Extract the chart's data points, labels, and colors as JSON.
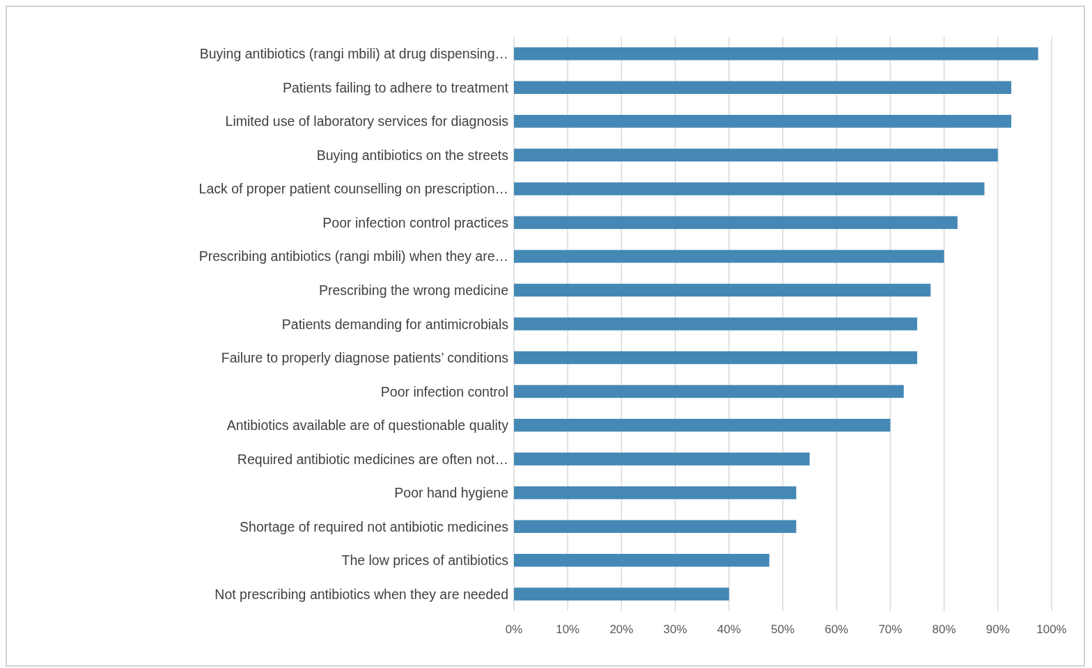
{
  "chart_data": {
    "type": "bar",
    "orientation": "horizontal",
    "categories": [
      "Buying antibiotics (rangi mbili) at drug dispensing…",
      "Patients failing to adhere to treatment",
      "Limited use of laboratory services for diagnosis",
      "Buying antibiotics on the streets",
      "Lack of proper patient counselling on prescription…",
      "Poor infection control practices",
      "Prescribing antibiotics (rangi mbili) when they are…",
      "Prescribing the wrong medicine",
      "Patients demanding for antimicrobials",
      "Failure to properly diagnose patients’ conditions",
      "Poor infection control",
      "Antibiotics available are of questionable quality",
      "Required antibiotic medicines are often not…",
      "Poor hand hygiene",
      "Shortage of required not antibiotic medicines",
      "The low prices of antibiotics",
      "Not prescribing antibiotics when they are needed"
    ],
    "values": [
      97.5,
      92.5,
      92.5,
      90,
      87.5,
      82.5,
      80,
      77.5,
      75,
      75,
      72.5,
      70,
      55,
      52.5,
      52.5,
      47.5,
      40
    ],
    "color": "#4588b5",
    "xlim": [
      0,
      100
    ],
    "xticks": [
      {
        "value": 0,
        "label": "0%"
      },
      {
        "value": 10,
        "label": "10%"
      },
      {
        "value": 20,
        "label": "20%"
      },
      {
        "value": 30,
        "label": "30%"
      },
      {
        "value": 40,
        "label": "40%"
      },
      {
        "value": 50,
        "label": "50%"
      },
      {
        "value": 60,
        "label": "60%"
      },
      {
        "value": 70,
        "label": "70%"
      },
      {
        "value": 80,
        "label": "80%"
      },
      {
        "value": 90,
        "label": "90%"
      },
      {
        "value": 100,
        "label": "100%"
      }
    ],
    "grid": "x"
  }
}
